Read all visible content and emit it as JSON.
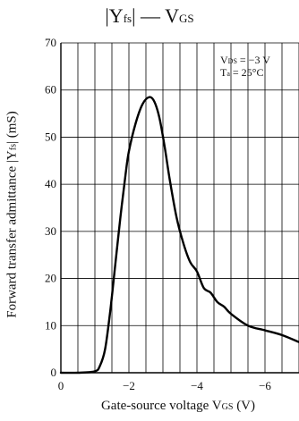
{
  "chart_data": {
    "type": "line",
    "title": {
      "main": "|Y",
      "sub": "fs",
      "rest": "| — V",
      "sub2": "GS"
    },
    "xlabel": {
      "main": "Gate-source voltage  V",
      "sub": "GS",
      "rest": "  (V)"
    },
    "ylabel": {
      "main": "Forward transfer admittance |Y",
      "sub": "fs",
      "rest": "|  (mS)"
    },
    "conditions": [
      {
        "main": "V",
        "sub": "DS",
        "rest": " = −3 V"
      },
      {
        "main": "T",
        "sub": "a",
        "rest": " = 25°C"
      }
    ],
    "x_reversed": true,
    "xlim": [
      0,
      -7
    ],
    "ylim": [
      0,
      70
    ],
    "xticks": [
      0,
      -2,
      -4,
      -6
    ],
    "xtick_labels": [
      "0",
      "−2",
      "−4",
      "−6"
    ],
    "yticks": [
      0,
      10,
      20,
      30,
      40,
      50,
      60,
      70
    ],
    "ytick_labels": [
      "0",
      "10",
      "20",
      "30",
      "40",
      "50",
      "60",
      "70"
    ],
    "grid": true,
    "series": [
      {
        "x": [
          0,
          -0.5,
          -1.0,
          -1.15,
          -1.3,
          -1.45,
          -1.6,
          -1.75,
          -1.9,
          -2.0,
          -2.2,
          -2.4,
          -2.6,
          -2.75,
          -2.9,
          -3.05,
          -3.2,
          -3.4,
          -3.6,
          -3.8,
          -4.0,
          -4.2,
          -4.4,
          -4.6,
          -4.8,
          -5.0,
          -5.5,
          -6.0,
          -6.5,
          -7.0
        ],
        "y": [
          0,
          0,
          0.3,
          1.5,
          5,
          13,
          23,
          33,
          42,
          47,
          53,
          57,
          58.5,
          57.5,
          54,
          48,
          41,
          33,
          27.5,
          23.5,
          21.5,
          18,
          17,
          15,
          14,
          12.5,
          10,
          9,
          8,
          6.5
        ]
      }
    ],
    "colors": {
      "line": "#000000",
      "grid": "#000000"
    }
  }
}
